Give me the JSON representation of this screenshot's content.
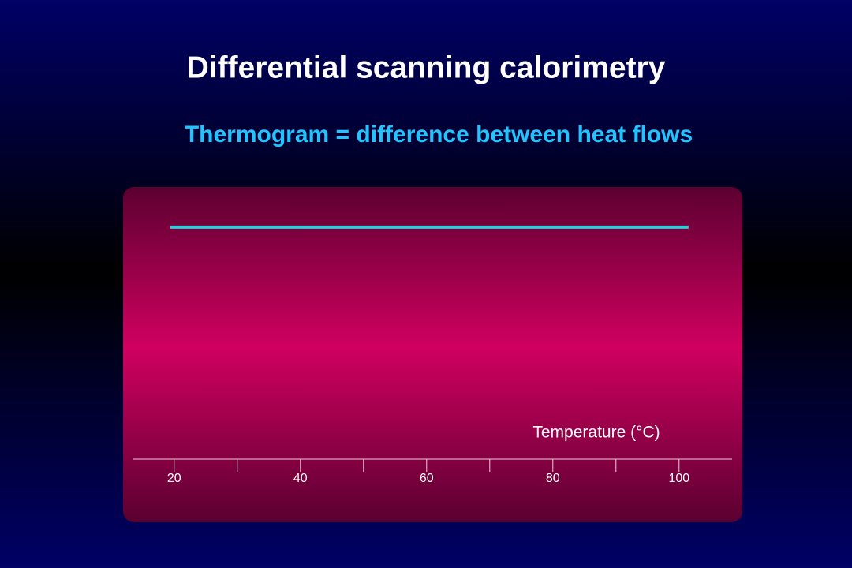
{
  "chart_data": {
    "type": "line",
    "title": "Differential scanning calorimetry",
    "subtitle": "Thermogram = difference between heat flows",
    "x_label": "Temperature (°C)",
    "x": [
      19.4,
      101.5
    ],
    "values": [
      0.86,
      0.86
    ],
    "color": "#3ec6d6",
    "xlim": [
      13.4,
      108.4
    ],
    "xticks": [
      20,
      40,
      60,
      80,
      100
    ],
    "ylim": [
      0,
      1
    ]
  }
}
